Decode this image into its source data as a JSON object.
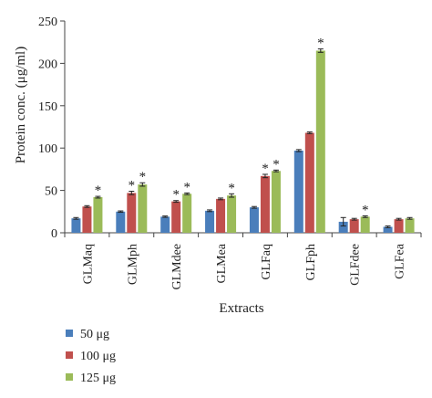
{
  "chart_data": {
    "type": "bar",
    "categories": [
      "GLMaq",
      "GLMph",
      "GLMdee",
      "GLMea",
      "GLFaq",
      "GLFph",
      "GLFdee",
      "GLFea"
    ],
    "series": [
      {
        "name": "50 μg",
        "color": "#4a7ebb",
        "values": [
          17,
          25,
          19,
          26,
          30,
          97,
          13,
          7
        ],
        "errors": [
          1,
          0.8,
          0.8,
          1,
          1,
          1.2,
          5,
          1
        ]
      },
      {
        "name": "100 μg",
        "color": "#c0504d",
        "values": [
          31,
          47,
          37,
          40,
          67,
          118,
          16,
          16
        ],
        "errors": [
          1,
          2,
          1,
          1,
          2,
          1,
          1,
          1
        ]
      },
      {
        "name": "125 μg",
        "color": "#9bbb59",
        "values": [
          42,
          57,
          46,
          44,
          73,
          215,
          19,
          17
        ],
        "errors": [
          1,
          2,
          1,
          2,
          1,
          2,
          1,
          1
        ]
      }
    ],
    "significance": [
      [
        false,
        false,
        true
      ],
      [
        false,
        true,
        true
      ],
      [
        false,
        true,
        true
      ],
      [
        false,
        false,
        true
      ],
      [
        false,
        true,
        true
      ],
      [
        false,
        false,
        true
      ],
      [
        false,
        false,
        true
      ],
      [
        false,
        false,
        false
      ]
    ],
    "star_label": "*",
    "xlabel": "Extracts",
    "ylabel": "Protein conc. (μg/ml)",
    "ylim": [
      0,
      250
    ],
    "yticks": [
      0,
      50,
      100,
      150,
      200,
      250
    ],
    "grid": false,
    "legend_position": "bottom-left"
  }
}
